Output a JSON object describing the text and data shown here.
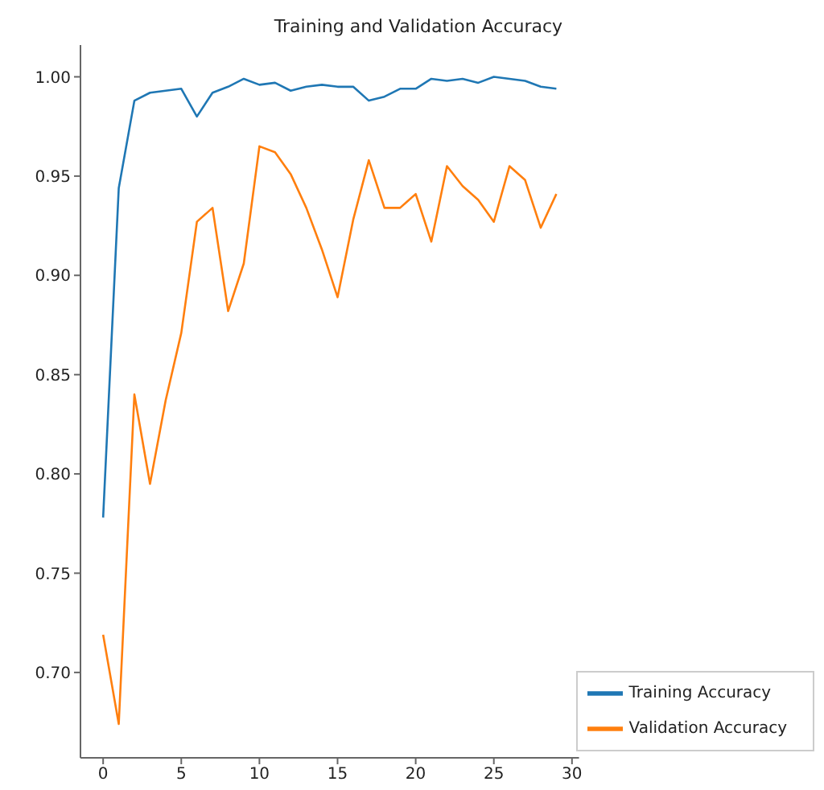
{
  "chart_data": {
    "type": "line",
    "title": "Training and Validation Accuracy",
    "x": [
      0,
      1,
      2,
      3,
      4,
      5,
      6,
      7,
      8,
      9,
      10,
      11,
      12,
      13,
      14,
      15,
      16,
      17,
      18,
      19,
      20,
      21,
      22,
      23,
      24,
      25,
      26,
      27,
      28,
      29
    ],
    "series": [
      {
        "name": "Training Accuracy",
        "color": "#1f77b4",
        "values": [
          0.778,
          0.944,
          0.988,
          0.992,
          0.993,
          0.994,
          0.98,
          0.992,
          0.995,
          0.999,
          0.996,
          0.997,
          0.993,
          0.995,
          0.996,
          0.995,
          0.995,
          0.988,
          0.99,
          0.994,
          0.994,
          0.999,
          0.998,
          0.999,
          0.997,
          1.0,
          0.999,
          0.998,
          0.995,
          0.994
        ]
      },
      {
        "name": "Validation Accuracy",
        "color": "#ff7f0e",
        "values": [
          0.719,
          0.674,
          0.84,
          0.795,
          0.837,
          0.871,
          0.927,
          0.934,
          0.882,
          0.906,
          0.965,
          0.962,
          0.951,
          0.934,
          0.913,
          0.889,
          0.928,
          0.958,
          0.934,
          0.934,
          0.941,
          0.917,
          0.955,
          0.945,
          0.938,
          0.927,
          0.955,
          0.948,
          0.924,
          0.941
        ]
      }
    ],
    "xlim": [
      -1.45,
      30.45
    ],
    "xticks": [
      0,
      5,
      10,
      15,
      20,
      25,
      30
    ],
    "ylim": [
      0.657,
      1.016
    ],
    "yticks": [
      {
        "value": 0.7,
        "label": "0.70"
      },
      {
        "value": 0.75,
        "label": "0.75"
      },
      {
        "value": 0.8,
        "label": "0.80"
      },
      {
        "value": 0.85,
        "label": "0.85"
      },
      {
        "value": 0.9,
        "label": "0.90"
      },
      {
        "value": 0.95,
        "label": "0.95"
      },
      {
        "value": 1.0,
        "label": "1.00"
      }
    ],
    "grid": false,
    "legend": "bottom right",
    "marker": "none",
    "line_style": "solid"
  }
}
